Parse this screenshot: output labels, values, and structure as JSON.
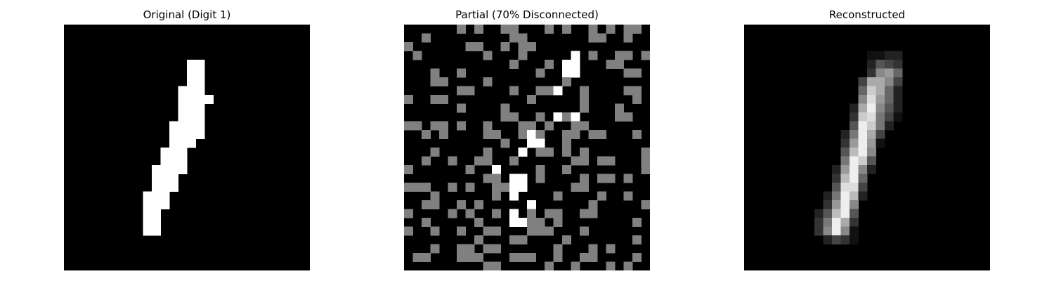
{
  "figure": {
    "panels": [
      {
        "title": "Original (Digit 1)"
      },
      {
        "title": "Partial (70% Disconnected)"
      },
      {
        "title": "Reconstructed"
      }
    ]
  },
  "images": {
    "grid_size": 28,
    "original": {
      "description": "binary 28x28 digit 1",
      "rows": [
        "............................",
        "............................",
        "............................",
        "............................",
        "..............##............",
        "..............##............",
        "..............##............",
        ".............###............",
        ".............####...........",
        ".............###............",
        ".............###............",
        "............####............",
        "............####............",
        "............###.............",
        "...........###..............",
        "...........###..............",
        "..........####..............",
        "..........###...............",
        "..........###...............",
        ".........###................",
        ".........###................",
        ".........##.................",
        ".........##.................",
        ".........##.................",
        "............................",
        "............................",
        "............................",
        "............................"
      ]
    },
    "partial": {
      "description": "digit with 70% pixels disconnected (gray = disconnected)",
      "rows": [
        "......g.g..gg...g.g..g.g.gg.",
        "..g.........gg.......gg..g..",
        "g......gg..g.gg.............",
        ".g.......g...g.....#.g..gg.g",
        "............g...g.##...gg...",
        "...g..g........g..##.....gg.",
        "...gg....g........g.........",
        "......gg....g..gg#..g....gg.",
        "g..gg.........g.....g.....g.",
        "......g....g........g...g...",
        "...........gg..g.#g#....gg..",
        "gg.gg.g..g...gg.g..gg.......",
        "..g.g....gg..g#g..gg.gg...g.",
        "...........g..##..g.........",
        "...g.....g...#.gg.g.g......g",
        "..g..g..gg..g......gg.gg...g",
        "g......g..#....g..g........g",
        ".........gg.##.g....g.gg.g..",
        "ggg..g.g..gg##.....gg.......",
        "...g......g.#....g....g..g..",
        "..gg..g.g.....#......g.....g",
        "g....g.g..g.#.g.gg..gg......",
        "..g.....g...##gg.g........g.",
        "g..g..g..gg...ggg...g.......",
        "........g...gg....g.......g.",
        "...g..gg.gg......g...g.g....",
        ".gg...ggg...ggg..g..gg....g.",
        ".........gg.....g..g...g.g.."
      ]
    },
    "reconstructed": {
      "description": "blurred grayscale reconstruction of digit 1",
      "rows": [
        "............................",
        "............................",
        "............................",
        "..............1122..........",
        "..............2543..........",
        "..............3896..........",
        ".............4aa84..........",
        ".............6ca62..........",
        ".............8d962..........",
        "............2ae852..........",
        "............3cd741..........",
        "............5ec72...........",
        "...........27ea4............",
        "...........39e91............",
        "...........5be8.............",
        "...........7ec5.............",
        "..........29e82.............",
        "..........3be6..............",
        "..........5dd4..............",
        ".........27eb2..............",
        ".........39e8...............",
        "........25be5...............",
        "........37ea3...............",
        "........38e81...............",
        ".........2431...............",
        "............................",
        "............................",
        "............................"
      ]
    }
  }
}
